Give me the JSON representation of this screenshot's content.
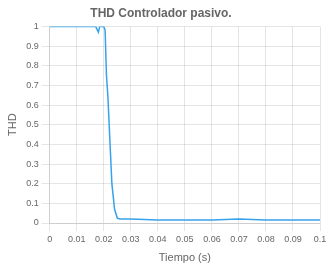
{
  "chart_data": {
    "type": "line",
    "title": "THD Controlador pasivo.",
    "x_label": "Tiempo (s)",
    "y_label": "THD",
    "x": [
      0.0,
      0.017,
      0.018,
      0.0185,
      0.019,
      0.0195,
      0.02,
      0.0205,
      0.021,
      0.0215,
      0.022,
      0.0225,
      0.023,
      0.024,
      0.025,
      0.026,
      0.027,
      0.028,
      0.03,
      0.04,
      0.05,
      0.06,
      0.07,
      0.08,
      0.09,
      0.1
    ],
    "values": [
      1.0,
      1.0,
      0.97,
      1.0,
      1.0,
      1.0,
      1.0,
      0.98,
      0.75,
      0.65,
      0.5,
      0.35,
      0.2,
      0.07,
      0.025,
      0.02,
      0.02,
      0.02,
      0.02,
      0.015,
      0.015,
      0.015,
      0.02,
      0.015,
      0.015,
      0.015
    ],
    "xlim": [
      0,
      0.1
    ],
    "ylim": [
      0,
      1
    ],
    "xticks": [
      0,
      0.01,
      0.02,
      0.03,
      0.04,
      0.05,
      0.06,
      0.07,
      0.08,
      0.09,
      0.1
    ],
    "yticks": [
      0,
      0.1,
      0.2,
      0.3,
      0.4,
      0.5,
      0.6,
      0.7,
      0.8,
      0.9,
      1
    ],
    "grid": true,
    "line_style": "solid",
    "marker": "none"
  }
}
